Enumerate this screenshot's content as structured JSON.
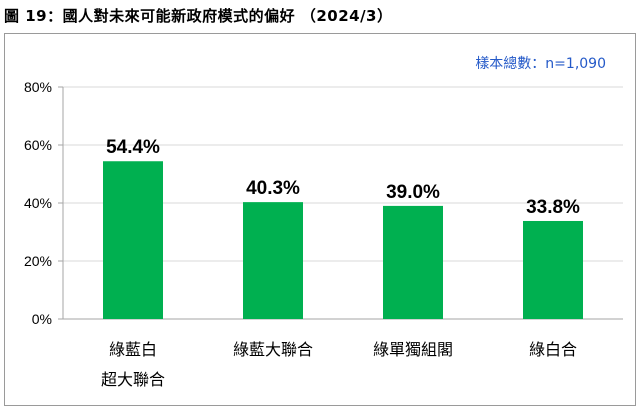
{
  "figure_title": "圖 19：國人對未來可能新政府模式的偏好 （2024/3）",
  "sample_note": "樣本總數：n=1,090",
  "colors": {
    "bar": "#00b050",
    "axis": "#a6a6a6",
    "grid": "#d9d9d9"
  },
  "chart_data": {
    "type": "bar",
    "title": "圖 19：國人對未來可能新政府模式的偏好 （2024/3）",
    "categories": [
      [
        "綠藍白",
        "超大聯合"
      ],
      [
        "綠藍大聯合"
      ],
      [
        "綠單獨組閣"
      ],
      [
        "綠白合"
      ]
    ],
    "values": [
      54.4,
      40.3,
      39.0,
      33.8
    ],
    "value_labels": [
      "54.4%",
      "40.3%",
      "39.0%",
      "33.8%"
    ],
    "ylim": [
      0,
      80
    ],
    "yticks": [
      "0%",
      "20%",
      "40%",
      "60%",
      "80%"
    ],
    "ytick_values": [
      0,
      20,
      40,
      60,
      80
    ],
    "grid": true,
    "xlabel": "",
    "ylabel": ""
  }
}
